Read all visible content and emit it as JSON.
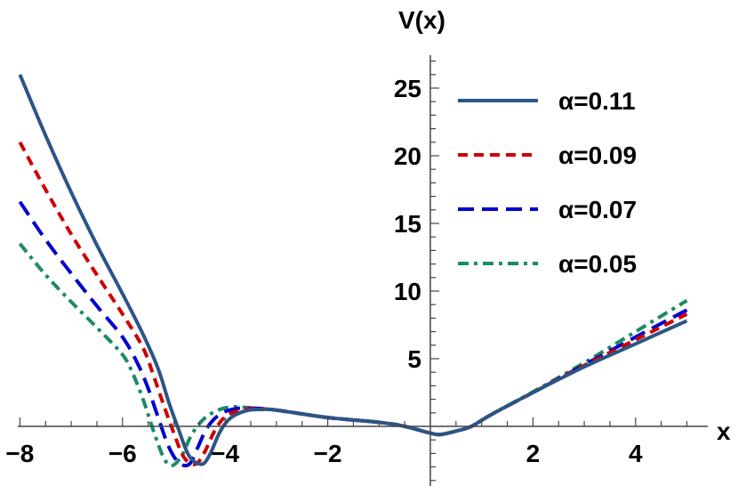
{
  "chart_data": {
    "type": "line",
    "title": "",
    "xlabel": "x",
    "ylabel": "V(x)",
    "xlim": [
      -8,
      5
    ],
    "ylim": [
      -4.4,
      27.5
    ],
    "grid": false,
    "legend_position": "top-right",
    "x_ticks": [
      -8,
      -6,
      -4,
      -2,
      2,
      4
    ],
    "x_tick_labels": [
      "−8",
      "−6",
      "−4",
      "−2",
      "2",
      "4"
    ],
    "y_ticks": [
      5,
      10,
      15,
      20,
      25
    ],
    "y_tick_labels": [
      "5",
      "10",
      "15",
      "20",
      "25"
    ],
    "series": [
      {
        "name": "α=0.11",
        "color": "#2b5586",
        "dash": "solid",
        "points": [
          [
            -8,
            26
          ],
          [
            -7.5,
            21.5
          ],
          [
            -7,
            17.3
          ],
          [
            -6.5,
            13.4
          ],
          [
            -6,
            9.8
          ],
          [
            -5.6,
            6.8
          ],
          [
            -5.3,
            4.2
          ],
          [
            -5.1,
            1.8
          ],
          [
            -4.9,
            -0.3
          ],
          [
            -4.7,
            -2.2
          ],
          [
            -4.46,
            -2.8
          ],
          [
            -4.3,
            -2.1
          ],
          [
            -4.1,
            -0.4
          ],
          [
            -3.9,
            0.6
          ],
          [
            -3.6,
            1.15
          ],
          [
            -3.3,
            1.25
          ],
          [
            -3,
            1.2
          ],
          [
            -2,
            0.65
          ],
          [
            -1,
            0.3
          ],
          [
            -0.5,
            0
          ],
          [
            0,
            -0.5
          ],
          [
            0.2,
            -0.6
          ],
          [
            0.5,
            -0.35
          ],
          [
            0.8,
            0
          ],
          [
            1.2,
            0.9
          ],
          [
            2,
            2.5
          ],
          [
            3,
            4.4
          ],
          [
            4,
            6.1
          ],
          [
            5,
            7.8
          ]
        ]
      },
      {
        "name": "α=0.09",
        "color": "#d00000",
        "dash": "dashed",
        "points": [
          [
            -8,
            21
          ],
          [
            -7.5,
            17.5
          ],
          [
            -7,
            14.2
          ],
          [
            -6.5,
            11.2
          ],
          [
            -6,
            8.3
          ],
          [
            -5.6,
            5.8
          ],
          [
            -5.4,
            3.8
          ],
          [
            -5.2,
            1.6
          ],
          [
            -5.0,
            -0.5
          ],
          [
            -4.8,
            -2.3
          ],
          [
            -4.58,
            -2.8
          ],
          [
            -4.4,
            -1.9
          ],
          [
            -4.2,
            -0.3
          ],
          [
            -4.0,
            0.7
          ],
          [
            -3.7,
            1.2
          ],
          [
            -3.4,
            1.3
          ],
          [
            -3,
            1.2
          ],
          [
            -2,
            0.65
          ],
          [
            -1,
            0.3
          ],
          [
            -0.5,
            0
          ],
          [
            0,
            -0.5
          ],
          [
            0.2,
            -0.6
          ],
          [
            0.5,
            -0.35
          ],
          [
            0.8,
            0
          ],
          [
            1.2,
            0.9
          ],
          [
            2,
            2.5
          ],
          [
            3,
            4.5
          ],
          [
            4,
            6.4
          ],
          [
            5,
            8.3
          ]
        ]
      },
      {
        "name": "α=0.07",
        "color": "#0000d0",
        "dash": "longdash",
        "points": [
          [
            -8,
            16.6
          ],
          [
            -7.5,
            13.8
          ],
          [
            -7,
            11.3
          ],
          [
            -6.5,
            8.9
          ],
          [
            -6,
            6.6
          ],
          [
            -5.7,
            4.6
          ],
          [
            -5.5,
            2.8
          ],
          [
            -5.3,
            0.6
          ],
          [
            -5.1,
            -1.5
          ],
          [
            -4.9,
            -2.7
          ],
          [
            -4.7,
            -2.8
          ],
          [
            -4.55,
            -1.7
          ],
          [
            -4.35,
            -0.1
          ],
          [
            -4.1,
            0.9
          ],
          [
            -3.8,
            1.3
          ],
          [
            -3.5,
            1.35
          ],
          [
            -3,
            1.2
          ],
          [
            -2,
            0.65
          ],
          [
            -1,
            0.3
          ],
          [
            -0.5,
            0
          ],
          [
            0,
            -0.5
          ],
          [
            0.2,
            -0.6
          ],
          [
            0.5,
            -0.35
          ],
          [
            0.8,
            0
          ],
          [
            1.2,
            0.9
          ],
          [
            2,
            2.5
          ],
          [
            3,
            4.55
          ],
          [
            4,
            6.6
          ],
          [
            5,
            8.6
          ]
        ]
      },
      {
        "name": "α=0.05",
        "color": "#1a8a68",
        "dash": "dotdash",
        "points": [
          [
            -8,
            13.5
          ],
          [
            -7.5,
            11.2
          ],
          [
            -7,
            9.2
          ],
          [
            -6.5,
            7.3
          ],
          [
            -6,
            5.3
          ],
          [
            -5.8,
            3.9
          ],
          [
            -5.6,
            2.0
          ],
          [
            -5.4,
            -0.3
          ],
          [
            -5.2,
            -2.3
          ],
          [
            -5.04,
            -2.9
          ],
          [
            -4.85,
            -2.2
          ],
          [
            -4.65,
            -0.6
          ],
          [
            -4.4,
            0.6
          ],
          [
            -4.1,
            1.25
          ],
          [
            -3.8,
            1.45
          ],
          [
            -3.5,
            1.35
          ],
          [
            -3,
            1.2
          ],
          [
            -2,
            0.65
          ],
          [
            -1,
            0.3
          ],
          [
            -0.5,
            0
          ],
          [
            0,
            -0.5
          ],
          [
            0.2,
            -0.6
          ],
          [
            0.5,
            -0.35
          ],
          [
            0.8,
            0
          ],
          [
            1.2,
            0.9
          ],
          [
            2,
            2.55
          ],
          [
            3,
            4.7
          ],
          [
            4,
            7.0
          ],
          [
            5,
            9.3
          ]
        ]
      }
    ]
  }
}
